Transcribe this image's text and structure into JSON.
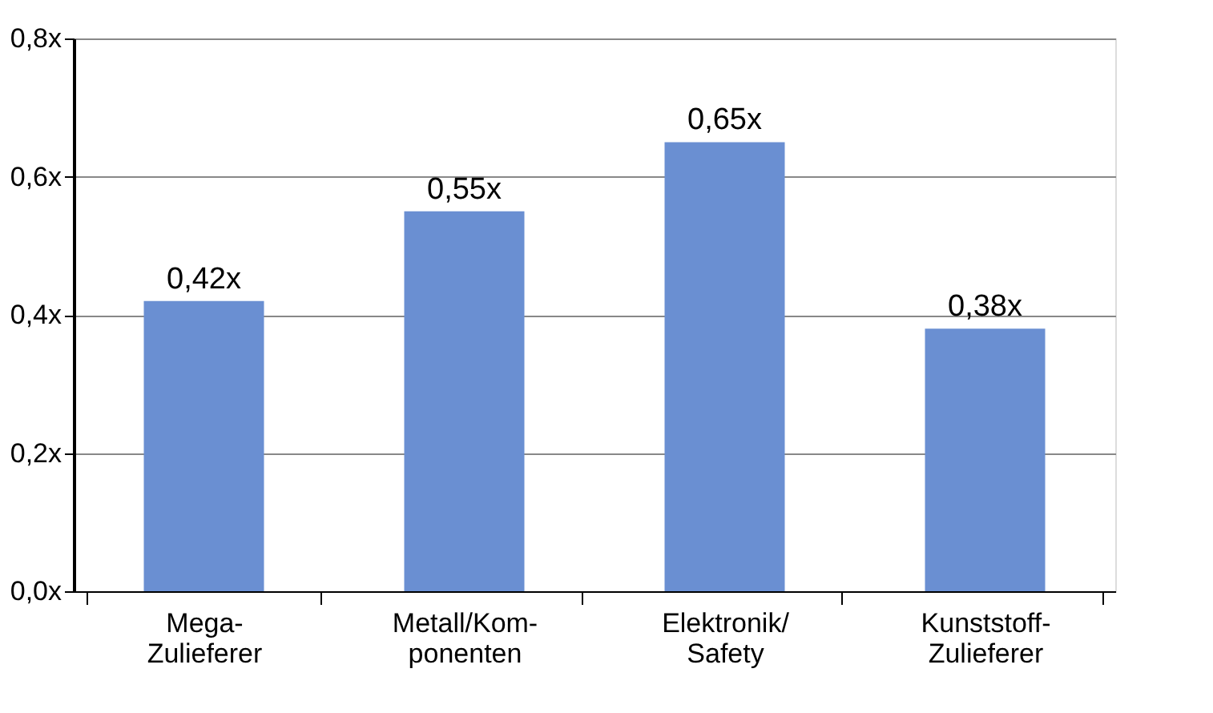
{
  "chart_data": {
    "type": "bar",
    "categories": [
      "Mega-\nZulieferer",
      "Metall/Kom-\nponenten",
      "Elektronik/\nSafety",
      "Kunststoff-\nZulieferer"
    ],
    "values": [
      0.42,
      0.55,
      0.65,
      0.38
    ],
    "value_labels": [
      "0,42x",
      "0,55x",
      "0,65x",
      "0,38x"
    ],
    "color": "#6a8fd2",
    "ylim": [
      0,
      0.8
    ],
    "yticks": [
      {
        "value": 0,
        "label": "0,0x"
      },
      {
        "value": 0.2,
        "label": "0,2x"
      },
      {
        "value": 0.4,
        "label": "0,4x"
      },
      {
        "value": 0.6,
        "label": "0,6x"
      },
      {
        "value": 0.8,
        "label": "0,8x"
      }
    ],
    "grid": "y"
  }
}
